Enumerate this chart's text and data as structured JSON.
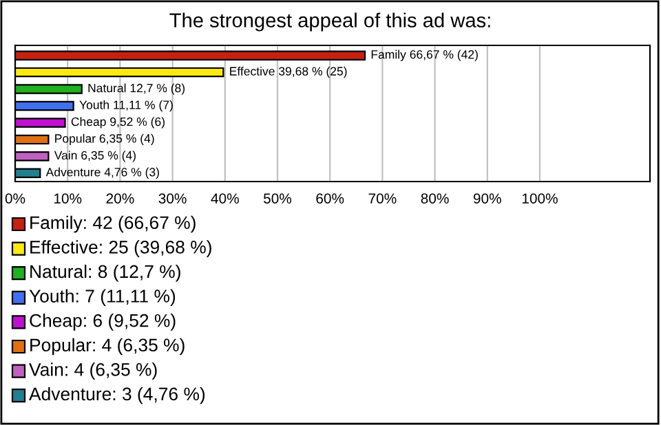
{
  "chart_data": {
    "type": "bar",
    "orientation": "horizontal",
    "title": "The strongest appeal of this ad was:",
    "categories": [
      null,
      null,
      null,
      null,
      null,
      null,
      null,
      null
    ],
    "values": [
      66.67,
      39.68,
      12.7,
      11.11,
      9.52,
      6.35,
      6.35,
      4.76
    ],
    "colors": [
      "#c8200f",
      "#ffe810",
      "#20b020",
      "#4070f0",
      "#c010d0",
      "#e07010",
      "#c060c0",
      "#208090"
    ],
    "value_labels": [
      "Family 66,67 % (42)",
      "Effective 39,68 % (25)",
      "Natural 12,7 % (8)",
      "Youth 11,11 % (7)",
      "Cheap 9,52 % (6)",
      "Popular 6,35 % (4)",
      "Vain 6,35 % (4)",
      "Adventure 4,76 % (3)"
    ],
    "xlim": [
      0,
      121
    ],
    "xticks": [
      {
        "value": 0,
        "label": "0%"
      },
      {
        "value": 10,
        "label": "10%"
      },
      {
        "value": 20,
        "label": "20%"
      },
      {
        "value": 30,
        "label": "30%"
      },
      {
        "value": 40,
        "label": "40%"
      },
      {
        "value": 50,
        "label": "50%"
      },
      {
        "value": 60,
        "label": "60%"
      },
      {
        "value": 70,
        "label": "70%"
      },
      {
        "value": 80,
        "label": "80%"
      },
      {
        "value": 90,
        "label": "90%"
      },
      {
        "value": 100,
        "label": "100%"
      }
    ],
    "grid": "x",
    "annotations": [
      "Family: 42 (66,67 %)",
      "Effective: 25 (39,68 %)",
      "Natural: 8 (12,7 %)",
      "Youth: 7 (11,11 %)",
      "Cheap: 6 (9,52 %)",
      "Popular: 4 (6,35 %)",
      "Vain: 4 (6,35 %)",
      "Adventure: 3 (4,76 %)"
    ]
  }
}
